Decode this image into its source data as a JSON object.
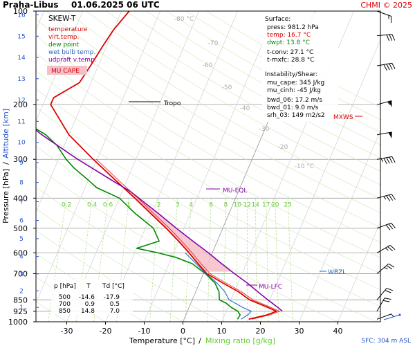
{
  "header": {
    "station": "Praha-Libus",
    "datetime": "01.06.2025 06 UTC",
    "credit": "CHMI © 2025"
  },
  "legend": {
    "title": "SKEW-T",
    "items": [
      {
        "label": "temperature",
        "color": "#dd0000"
      },
      {
        "label": "virt.temp.",
        "color": "#dd0000"
      },
      {
        "label": "dew point",
        "color": "#008800"
      },
      {
        "label": "wet bulb temp.",
        "color": "#2266cc"
      },
      {
        "label": "udpraft v.temp.",
        "color": "#8800aa"
      }
    ],
    "cape_label": "MU CAPE"
  },
  "surface_box": {
    "title": "Surface:",
    "rows": [
      {
        "text": "press: 981.2 hPa",
        "color": "#000000"
      },
      {
        "text": "temp: 16.7 °C",
        "color": "#dd0000"
      },
      {
        "text": "dwpt: 13.8 °C",
        "color": "#008800"
      },
      {
        "text": "t-conv: 27.1 °C",
        "color": "#000000"
      },
      {
        "text": "t-mxfc: 28.8 °C",
        "color": "#000000"
      }
    ],
    "instability_title": "Instability/Shear:",
    "instability_rows": [
      "mu_cape: 345 J/kg",
      "mu_cinh: -45 J/kg",
      "bwd_06: 17.2 m/s",
      "bwd_01: 9.0 m/s",
      "srh_03: 149 m2/s2"
    ]
  },
  "table": {
    "headers": [
      "p [hPa]",
      "T",
      "Td [°C]"
    ],
    "rows": [
      [
        "500",
        "-14.6",
        "-17.9"
      ],
      [
        "700",
        "0.9",
        "0.5"
      ],
      [
        "850",
        "14.8",
        "7.0"
      ]
    ]
  },
  "labels": {
    "tropo": "Tropo",
    "mu_eql": "MU-EQL",
    "mu_lfc": "MU-LFC",
    "wbzl": "WBZL",
    "mxws": "MXWS",
    "sfc": "SFC: 304 m ASL"
  },
  "axes": {
    "xlabel_temp": "Temperature [°C]",
    "xlabel_sep": "/",
    "xlabel_mix": "Mixing ratio [g/kg]",
    "ylabel": "Pressure [hPa]",
    "ylabel_sep": "/",
    "ylabel_alt": "Altitude [km]"
  },
  "colors": {
    "temp": "#dd0000",
    "dew": "#008800",
    "wetbulb": "#2266cc",
    "parcel": "#8800aa",
    "cape": "#f4c0c8",
    "alt_axis": "#2255cc",
    "mix": "#66cc33",
    "isotherm_label": "#aaaaaa"
  },
  "chart_data": {
    "type": "line",
    "title": "SKEW-T",
    "xlim": [
      -35,
      45
    ],
    "ylim": [
      1000,
      100
    ],
    "y_scale": "log",
    "x_ticks": [
      -30,
      -20,
      -10,
      0,
      10,
      20,
      30,
      40
    ],
    "p_ticks": [
      100,
      200,
      300,
      400,
      500,
      600,
      700,
      850,
      925,
      1000
    ],
    "altitude_ticks_km": [
      1,
      2,
      3,
      4,
      5,
      6,
      7,
      8,
      9,
      10,
      11,
      12,
      13,
      14,
      15,
      16
    ],
    "isotherm_labels": [
      {
        "T": -80,
        "label": "-80 °C"
      },
      {
        "T": -70,
        "label": "-70"
      },
      {
        "T": -60,
        "label": "-60"
      },
      {
        "T": -50,
        "label": "-50"
      },
      {
        "T": -40,
        "label": "-40"
      },
      {
        "T": -30,
        "label": "-30"
      },
      {
        "T": -20,
        "label": "-20"
      },
      {
        "T": -10,
        "label": "-10 °C"
      }
    ],
    "mixing_ratio_labels": [
      "0.2",
      "0.4",
      "0.6",
      "1",
      "2",
      "3",
      "4",
      "6",
      "8",
      "10",
      "12",
      "14",
      "17",
      "20",
      "25"
    ],
    "series": [
      {
        "name": "temperature",
        "points": [
          [
            981,
            16.7
          ],
          [
            950,
            21
          ],
          [
            925,
            23
          ],
          [
            900,
            20.5
          ],
          [
            850,
            14.8
          ],
          [
            800,
            11
          ],
          [
            750,
            6
          ],
          [
            700,
            0.9
          ],
          [
            650,
            -2.5
          ],
          [
            600,
            -6
          ],
          [
            550,
            -10
          ],
          [
            500,
            -14.6
          ],
          [
            450,
            -20
          ],
          [
            400,
            -26
          ],
          [
            350,
            -33
          ],
          [
            300,
            -41
          ],
          [
            250,
            -50
          ],
          [
            200,
            -58
          ],
          [
            190,
            -58
          ],
          [
            170,
            -53
          ],
          [
            150,
            -52
          ],
          [
            130,
            -51
          ],
          [
            115,
            -50
          ],
          [
            100,
            -48
          ]
        ]
      },
      {
        "name": "dew point",
        "points": [
          [
            981,
            13.8
          ],
          [
            950,
            14
          ],
          [
            925,
            13
          ],
          [
            900,
            11
          ],
          [
            870,
            9
          ],
          [
            850,
            7
          ],
          [
            800,
            6
          ],
          [
            750,
            4
          ],
          [
            700,
            0.5
          ],
          [
            650,
            -4
          ],
          [
            620,
            -9
          ],
          [
            600,
            -14
          ],
          [
            580,
            -20
          ],
          [
            550,
            -15
          ],
          [
            500,
            -17.9
          ],
          [
            450,
            -24
          ],
          [
            400,
            -30
          ],
          [
            370,
            -37
          ],
          [
            350,
            -40
          ],
          [
            320,
            -45
          ],
          [
            300,
            -48
          ],
          [
            270,
            -52
          ],
          [
            250,
            -56
          ],
          [
            230,
            -62
          ],
          [
            210,
            -64
          ],
          [
            200,
            -66
          ],
          [
            180,
            -68
          ],
          [
            170,
            -70
          ],
          [
            150,
            -75
          ],
          [
            140,
            -82
          ],
          [
            120,
            -80
          ],
          [
            110,
            -78
          ],
          [
            100,
            -77
          ]
        ]
      },
      {
        "name": "wet bulb temp.",
        "points": [
          [
            981,
            14.7
          ],
          [
            950,
            16
          ],
          [
            925,
            16.5
          ],
          [
            900,
            14
          ],
          [
            850,
            9.5
          ],
          [
            800,
            7.5
          ],
          [
            750,
            4.5
          ],
          [
            700,
            0.7
          ],
          [
            650,
            -3
          ],
          [
            600,
            -7
          ]
        ]
      },
      {
        "name": "udpraft v.temp.",
        "points": [
          [
            925,
            24.5
          ],
          [
            900,
            23
          ],
          [
            850,
            19.5
          ],
          [
            800,
            16
          ],
          [
            750,
            12.3
          ],
          [
            700,
            8
          ],
          [
            650,
            3.6
          ],
          [
            600,
            -1
          ],
          [
            550,
            -6.3
          ],
          [
            500,
            -12
          ],
          [
            450,
            -18
          ],
          [
            400,
            -25
          ],
          [
            380,
            -28
          ],
          [
            350,
            -34
          ],
          [
            300,
            -45
          ],
          [
            250,
            -57
          ],
          [
            200,
            -70
          ],
          [
            150,
            -84
          ],
          [
            100,
            -100
          ]
        ]
      }
    ],
    "winds": [
      {
        "p": 981,
        "dir": 250,
        "spd": 5
      },
      {
        "p": 925,
        "dir": 210,
        "spd": 20
      },
      {
        "p": 850,
        "dir": 220,
        "spd": 20
      },
      {
        "p": 700,
        "dir": 230,
        "spd": 25
      },
      {
        "p": 600,
        "dir": 240,
        "spd": 25
      },
      {
        "p": 500,
        "dir": 250,
        "spd": 30
      },
      {
        "p": 400,
        "dir": 255,
        "spd": 35
      },
      {
        "p": 300,
        "dir": 260,
        "spd": 45
      },
      {
        "p": 250,
        "dir": 260,
        "spd": 50
      },
      {
        "p": 200,
        "dir": 255,
        "spd": 55
      },
      {
        "p": 150,
        "dir": 260,
        "spd": 40
      },
      {
        "p": 120,
        "dir": 265,
        "spd": 30
      },
      {
        "p": 100,
        "dir": 290,
        "spd": 15
      }
    ]
  }
}
